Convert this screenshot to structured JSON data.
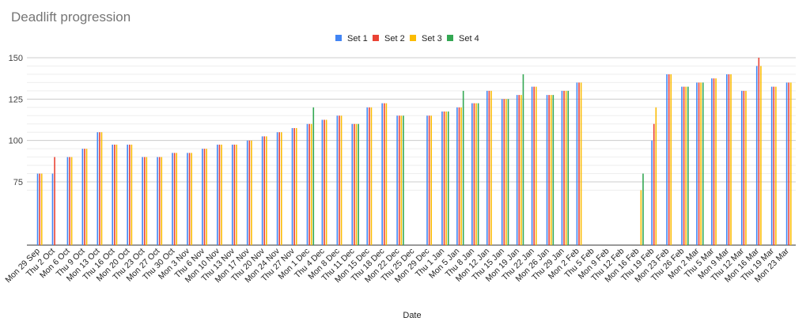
{
  "chart_data": {
    "type": "bar",
    "title": "Deadlift progression",
    "xlabel": "Date",
    "ylabel": "",
    "ylim": [
      65,
      150
    ],
    "yticks": [
      75,
      100,
      125,
      150
    ],
    "grid": true,
    "legend_position": "top",
    "categories": [
      "Mon 29 Sep",
      "Thu 2 Oct",
      "Mon 6 Oct",
      "Thu 9 Oct",
      "Mon 13 Oct",
      "Thu 16 Oct",
      "Mon 20 Oct",
      "Thu 23 Oct",
      "Mon 27 Oct",
      "Thu 30 Oct",
      "Mon 3 Nov",
      "Thu 6 Nov",
      "Mon 10 Nov",
      "Thu 13 Nov",
      "Mon 17 Nov",
      "Thu 20 Nov",
      "Mon 24 Nov",
      "Thu 27 Nov",
      "Mon 1 Dec",
      "Thu 4 Dec",
      "Mon 8 Dec",
      "Thu 11 Dec",
      "Mon 15 Dec",
      "Thu 18 Dec",
      "Mon 22 Dec",
      "Thu 25 Dec",
      "Mon 29 Dec",
      "Thu 1 Jan",
      "Mon 5 Jan",
      "Thu 8 Jan",
      "Mon 12 Jan",
      "Thu 15 Jan",
      "Mon 19 Jan",
      "Thu 22 Jan",
      "Mon 26 Jan",
      "Thu 29 Jan",
      "Mon 2 Feb",
      "Thu 5 Feb",
      "Mon 9 Feb",
      "Thu 12 Feb",
      "Mon 16 Feb",
      "Thu 19 Feb",
      "Mon 23 Feb",
      "Thu 26 Feb",
      "Mon 2 Mar",
      "Thu 5 Mar",
      "Mon 9 Mar",
      "Thu 12 Mar",
      "Mon 16 Mar",
      "Thu 19 Mar",
      "Mon 23 Mar"
    ],
    "series": [
      {
        "name": "Set 1",
        "color": "#4285f4",
        "values": [
          80,
          80,
          90,
          95,
          105,
          97.5,
          97.5,
          90,
          90,
          92.5,
          92.5,
          95,
          97.5,
          97.5,
          100,
          102.5,
          105,
          107.5,
          110,
          112.5,
          115,
          110,
          120,
          122.5,
          115,
          null,
          115,
          117.5,
          120,
          122.5,
          130,
          125,
          127.5,
          132.5,
          127.5,
          130,
          135,
          null,
          null,
          null,
          null,
          100,
          140,
          132.5,
          135,
          137.5,
          140,
          130,
          145,
          132.5,
          135
        ]
      },
      {
        "name": "Set 2",
        "color": "#ea4335",
        "values": [
          80,
          90,
          90,
          95,
          105,
          97.5,
          97.5,
          90,
          90,
          92.5,
          92.5,
          95,
          97.5,
          97.5,
          100,
          102.5,
          105,
          107.5,
          110,
          112.5,
          115,
          110,
          120,
          122.5,
          115,
          null,
          115,
          117.5,
          120,
          122.5,
          130,
          125,
          127.5,
          132.5,
          127.5,
          130,
          135,
          null,
          null,
          null,
          null,
          110,
          140,
          132.5,
          135,
          137.5,
          140,
          130,
          150,
          132.5,
          135
        ]
      },
      {
        "name": "Set 3",
        "color": "#fbbc04",
        "values": [
          80,
          null,
          90,
          95,
          105,
          97.5,
          97.5,
          90,
          90,
          92.5,
          92.5,
          95,
          97.5,
          97.5,
          100,
          102.5,
          105,
          107.5,
          110,
          112.5,
          115,
          110,
          120,
          122.5,
          115,
          null,
          115,
          117.5,
          120,
          122.5,
          130,
          125,
          127.5,
          132.5,
          127.5,
          130,
          135,
          null,
          null,
          null,
          70,
          120,
          140,
          132.5,
          135,
          137.5,
          140,
          130,
          145,
          132.5,
          135
        ]
      },
      {
        "name": "Set 4",
        "color": "#34a853",
        "values": [
          null,
          null,
          null,
          null,
          null,
          null,
          null,
          null,
          null,
          null,
          null,
          null,
          null,
          null,
          null,
          null,
          null,
          null,
          120,
          null,
          null,
          110,
          null,
          null,
          115,
          null,
          null,
          117.5,
          130,
          122.5,
          null,
          125,
          140,
          null,
          127.5,
          130,
          null,
          null,
          null,
          null,
          80,
          null,
          null,
          132.5,
          135,
          null,
          null,
          null,
          null,
          null,
          null
        ]
      }
    ]
  }
}
